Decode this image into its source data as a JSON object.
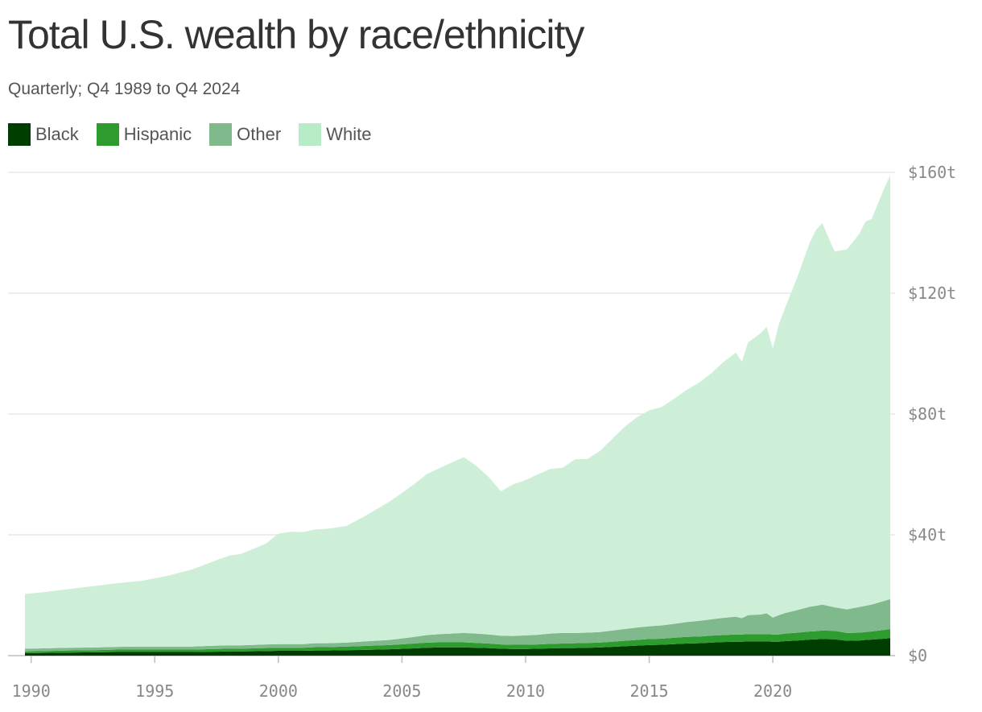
{
  "title": "Total U.S. wealth by race/ethnicity",
  "subtitle": "Quarterly; Q4 1989 to Q4 2024",
  "legend": [
    {
      "name": "Black",
      "color": "#003d00"
    },
    {
      "name": "Hispanic",
      "color": "#2d9b2d"
    },
    {
      "name": "Other",
      "color": "#7fb98c"
    },
    {
      "name": "White",
      "color": "#b8ebc8"
    }
  ],
  "chart_data": {
    "type": "area",
    "stacked": true,
    "title": "Total U.S. wealth by race/ethnicity",
    "subtitle": "Quarterly; Q4 1989 to Q4 2024",
    "xlabel": "",
    "ylabel": "",
    "xlim": [
      1989.75,
      2024.75
    ],
    "ylim": [
      0,
      160
    ],
    "x_ticks": [
      1990,
      1995,
      2000,
      2005,
      2010,
      2015,
      2020
    ],
    "x_tick_labels": [
      "1990",
      "1995",
      "2000",
      "2005",
      "2010",
      "2015",
      "2020"
    ],
    "y_ticks": [
      0,
      40,
      80,
      120,
      160
    ],
    "y_tick_labels": [
      "$0",
      "$40t",
      "$80t",
      "$120t",
      "$160t"
    ],
    "grid": "horizontal",
    "legend_position": "top-left",
    "x": [
      1989.75,
      1990.5,
      1991.5,
      1992.5,
      1993.5,
      1994.5,
      1995.5,
      1996.5,
      1997.5,
      1998.0,
      1998.5,
      1999.5,
      2000.0,
      2000.5,
      2001.0,
      2001.5,
      2002.0,
      2002.75,
      2003.5,
      2004.5,
      2005.5,
      2006.0,
      2006.5,
      2007.0,
      2007.5,
      2008.0,
      2008.5,
      2009.0,
      2009.5,
      2010.0,
      2010.5,
      2011.0,
      2011.5,
      2012.0,
      2012.5,
      2013.0,
      2013.5,
      2014.0,
      2014.5,
      2015.0,
      2015.5,
      2016.0,
      2016.5,
      2017.0,
      2017.5,
      2018.0,
      2018.5,
      2018.75,
      2019.0,
      2019.5,
      2019.75,
      2020.0,
      2020.25,
      2020.5,
      2021.0,
      2021.5,
      2021.75,
      2022.0,
      2022.5,
      2023.0,
      2023.5,
      2023.75,
      2024.0,
      2024.5,
      2024.75
    ],
    "series": [
      {
        "name": "Black",
        "values": [
          0.8,
          0.9,
          1.0,
          1.1,
          1.2,
          1.2,
          1.2,
          1.2,
          1.3,
          1.4,
          1.4,
          1.5,
          1.6,
          1.6,
          1.6,
          1.7,
          1.7,
          1.8,
          1.9,
          2.1,
          2.4,
          2.6,
          2.7,
          2.7,
          2.7,
          2.6,
          2.5,
          2.3,
          2.2,
          2.2,
          2.3,
          2.4,
          2.5,
          2.5,
          2.6,
          2.7,
          2.9,
          3.1,
          3.3,
          3.5,
          3.6,
          3.8,
          4.0,
          4.1,
          4.3,
          4.5,
          4.6,
          4.6,
          4.7,
          4.7,
          4.7,
          4.6,
          4.6,
          4.8,
          5.0,
          5.3,
          5.4,
          5.5,
          5.4,
          4.9,
          5.0,
          5.2,
          5.3,
          5.6,
          5.8
        ]
      },
      {
        "name": "Hispanic",
        "values": [
          0.6,
          0.6,
          0.7,
          0.7,
          0.8,
          0.8,
          0.8,
          0.8,
          0.9,
          0.9,
          0.9,
          1.0,
          1.0,
          1.0,
          1.0,
          1.1,
          1.1,
          1.2,
          1.3,
          1.4,
          1.6,
          1.7,
          1.7,
          1.7,
          1.7,
          1.6,
          1.5,
          1.4,
          1.4,
          1.4,
          1.4,
          1.5,
          1.5,
          1.6,
          1.6,
          1.6,
          1.7,
          1.8,
          1.9,
          2.0,
          2.0,
          2.1,
          2.2,
          2.2,
          2.3,
          2.3,
          2.4,
          2.4,
          2.4,
          2.4,
          2.4,
          2.4,
          2.4,
          2.5,
          2.6,
          2.7,
          2.7,
          2.8,
          2.8,
          2.6,
          2.6,
          2.6,
          2.7,
          2.9,
          3.0
        ]
      },
      {
        "name": "Other",
        "values": [
          0.9,
          0.9,
          0.9,
          0.9,
          0.9,
          1.0,
          1.0,
          1.0,
          1.1,
          1.1,
          1.1,
          1.2,
          1.2,
          1.2,
          1.2,
          1.3,
          1.3,
          1.3,
          1.5,
          1.7,
          2.2,
          2.5,
          2.7,
          2.9,
          3.1,
          3.1,
          3.0,
          2.9,
          2.9,
          3.1,
          3.2,
          3.4,
          3.5,
          3.4,
          3.4,
          3.5,
          3.7,
          3.9,
          4.1,
          4.2,
          4.4,
          4.6,
          4.9,
          5.2,
          5.4,
          5.7,
          5.9,
          5.4,
          6.3,
          6.5,
          6.9,
          5.6,
          6.4,
          6.8,
          7.5,
          8.2,
          8.4,
          8.6,
          7.8,
          7.8,
          8.5,
          8.7,
          8.9,
          9.6,
          9.9
        ]
      },
      {
        "name": "White",
        "values": [
          18.1,
          18.6,
          19.4,
          20.3,
          21.1,
          21.8,
          23.4,
          25.5,
          28.3,
          29.7,
          30.3,
          33.4,
          36.6,
          37.2,
          37.1,
          37.7,
          37.9,
          38.6,
          41.5,
          45.8,
          50.6,
          53.3,
          54.9,
          56.6,
          58.2,
          55.6,
          52.2,
          47.8,
          50.2,
          51.4,
          53.1,
          54.5,
          54.7,
          57.5,
          57.5,
          59.9,
          63.4,
          66.9,
          69.6,
          71.5,
          72.3,
          74.5,
          76.8,
          78.8,
          81.4,
          84.7,
          87.4,
          85.0,
          90.3,
          93.1,
          94.8,
          89.2,
          96.4,
          101.1,
          110.4,
          120.7,
          124.5,
          126.3,
          117.8,
          119.2,
          123.6,
          127.2,
          127.7,
          136.5,
          140.3
        ]
      }
    ]
  }
}
